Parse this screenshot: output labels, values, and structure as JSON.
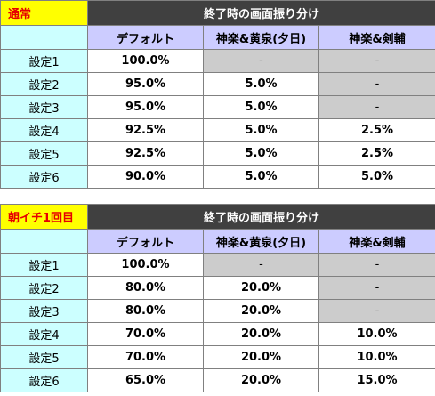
{
  "tables": [
    {
      "title": "通常",
      "header": "終了時の画面振り分け",
      "columns": [
        "デフォルト",
        "神楽&黄泉(夕日)",
        "神楽&剣輔"
      ],
      "rows": [
        {
          "label": "設定1",
          "values": [
            "100.0%",
            "-",
            "-"
          ]
        },
        {
          "label": "設定2",
          "values": [
            "95.0%",
            "5.0%",
            "-"
          ]
        },
        {
          "label": "設定3",
          "values": [
            "95.0%",
            "5.0%",
            "-"
          ]
        },
        {
          "label": "設定4",
          "values": [
            "92.5%",
            "5.0%",
            "2.5%"
          ]
        },
        {
          "label": "設定5",
          "values": [
            "92.5%",
            "5.0%",
            "2.5%"
          ]
        },
        {
          "label": "設定6",
          "values": [
            "90.0%",
            "5.0%",
            "5.0%"
          ]
        }
      ]
    },
    {
      "title": "朝イチ1回目",
      "header": "終了時の画面振り分け",
      "columns": [
        "デフォルト",
        "神楽&黄泉(夕日)",
        "神楽&剣輔"
      ],
      "rows": [
        {
          "label": "設定1",
          "values": [
            "100.0%",
            "-",
            "-"
          ]
        },
        {
          "label": "設定2",
          "values": [
            "80.0%",
            "20.0%",
            "-"
          ]
        },
        {
          "label": "設定3",
          "values": [
            "80.0%",
            "20.0%",
            "-"
          ]
        },
        {
          "label": "設定4",
          "values": [
            "70.0%",
            "20.0%",
            "10.0%"
          ]
        },
        {
          "label": "設定5",
          "values": [
            "70.0%",
            "20.0%",
            "10.0%"
          ]
        },
        {
          "label": "設定6",
          "values": [
            "65.0%",
            "20.0%",
            "15.0%"
          ]
        }
      ]
    }
  ],
  "colors": {
    "title_bg": "#ffff00",
    "title_text": "#e60000",
    "header_bg": "#404040",
    "subheader_bg": "#ccccff",
    "label_bg": "#ccffff",
    "na_bg": "#cccccc"
  }
}
